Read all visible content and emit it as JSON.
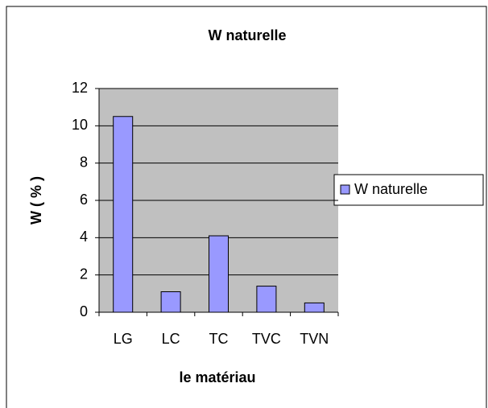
{
  "chart_data": {
    "type": "bar",
    "title": "W naturelle",
    "x_label": "le matériau",
    "y_label": "W ( % )",
    "categories": [
      "LG",
      "LC",
      "TC",
      "TVC",
      "TVN"
    ],
    "series": [
      {
        "name": "W naturelle",
        "color": "#9999ff",
        "values": [
          10.5,
          1.1,
          4.1,
          1.4,
          0.5
        ]
      }
    ],
    "ylim": [
      0,
      12
    ],
    "yticks": [
      0,
      2,
      4,
      6,
      8,
      10,
      12
    ],
    "grid": true,
    "legend": "right"
  }
}
